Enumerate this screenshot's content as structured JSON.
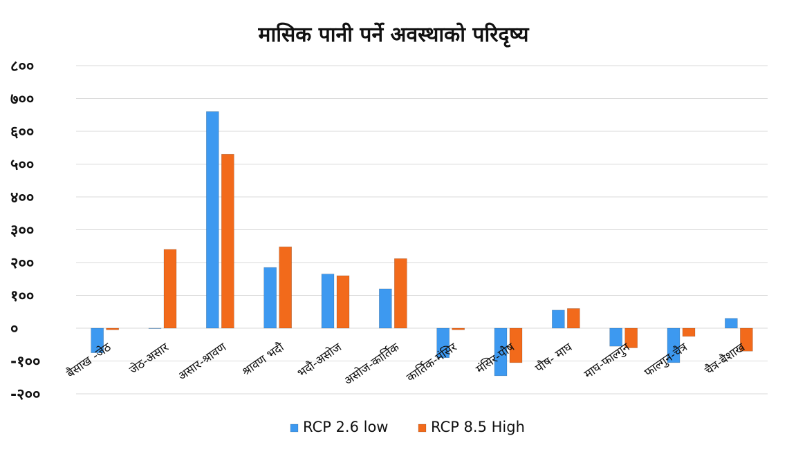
{
  "chart_data": {
    "type": "bar",
    "title": "मासिक पानी पर्ने अवस्थाको परिदृष्य",
    "xlabel": "",
    "ylabel": "",
    "ylim": [
      -200,
      800
    ],
    "yticks": [
      -200,
      -100,
      0,
      100,
      200,
      300,
      400,
      500,
      600,
      700,
      800
    ],
    "ytick_labels": [
      "-२००",
      "-१००",
      "०",
      "१००",
      "२००",
      "३००",
      "४००",
      "५००",
      "६००",
      "७००",
      "८००"
    ],
    "grid": true,
    "legend_position": "bottom",
    "categories": [
      "बैसाख -जेठ",
      "जेठ-असार",
      "असार-श्रावण",
      "श्रावण भदौ",
      "भदौ-असोज",
      "असोज-कार्तिक",
      "कार्तिक-मंसिर",
      "मंसिर-पौष",
      "पौष- माघ",
      "माघ-फाल्गुन",
      "फाल्गुन-चैत्र",
      "चैत्र-बैशाख"
    ],
    "series": [
      {
        "name": "RCP 2.6 low",
        "color": "#3d99f0",
        "values": [
          -75,
          0,
          660,
          185,
          165,
          120,
          -90,
          -145,
          55,
          -55,
          -105,
          30
        ]
      },
      {
        "name": "RCP 8.5 High",
        "color": "#f26a1b",
        "values": [
          -5,
          240,
          530,
          248,
          160,
          212,
          -5,
          -105,
          60,
          -60,
          -25,
          -70
        ]
      }
    ]
  }
}
